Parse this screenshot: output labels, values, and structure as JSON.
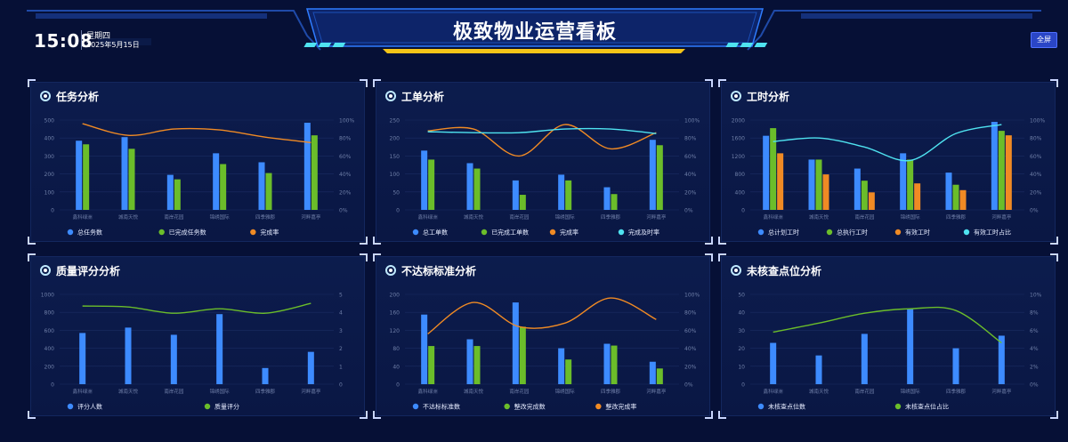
{
  "header": {
    "time": "15:08",
    "weekday": "星期四",
    "date": "2025年5月15日",
    "title": "极致物业运营看板",
    "fullscreen_label": "全屏"
  },
  "colors": {
    "blue": "#3d8bff",
    "green": "#6bbd2a",
    "orange": "#f08a24",
    "cyan": "#4fe3f0",
    "axis_text": "#6f7fa8"
  },
  "panels": [
    {
      "title": "任务分析"
    },
    {
      "title": "工单分析"
    },
    {
      "title": "工时分析"
    },
    {
      "title": "质量评分分析"
    },
    {
      "title": "不达标标准分析"
    },
    {
      "title": "未核查点位分析"
    }
  ],
  "chart_data": [
    {
      "type": "bar",
      "categories": [
        "鑫科绿洲",
        "城南天悦",
        "南岸花园",
        "锦绣国际",
        "四季雅郡",
        "河畔嘉亭"
      ],
      "left_ticks": [
        "0",
        "100",
        "200",
        "300",
        "400",
        "500"
      ],
      "right_ticks": [
        "0%",
        "20%",
        "40%",
        "60%",
        "80%",
        "100%"
      ],
      "ylim": [
        0,
        500
      ],
      "y2lim": [
        0,
        100
      ],
      "series": [
        {
          "name": "总任务数",
          "kind": "bar",
          "color": "#3d8bff",
          "values": [
            385,
            405,
            195,
            315,
            265,
            485
          ]
        },
        {
          "name": "已完成任务数",
          "kind": "bar",
          "color": "#6bbd2a",
          "values": [
            365,
            340,
            170,
            255,
            205,
            415
          ]
        },
        {
          "name": "完成率",
          "kind": "line",
          "axis": "right",
          "color": "#f08a24",
          "values": [
            96,
            83,
            90,
            89,
            81,
            75
          ]
        }
      ]
    },
    {
      "type": "bar",
      "categories": [
        "鑫科绿洲",
        "城南天悦",
        "南岸花园",
        "锦绣国际",
        "四季雅郡",
        "河畔嘉亭"
      ],
      "left_ticks": [
        "0",
        "50",
        "100",
        "150",
        "200",
        "250"
      ],
      "right_ticks": [
        "0%",
        "20%",
        "40%",
        "60%",
        "80%",
        "100%"
      ],
      "ylim": [
        0,
        250
      ],
      "y2lim": [
        0,
        100
      ],
      "series": [
        {
          "name": "总工单数",
          "kind": "bar",
          "color": "#3d8bff",
          "values": [
            165,
            130,
            82,
            98,
            63,
            195
          ]
        },
        {
          "name": "已完成工单数",
          "kind": "bar",
          "color": "#6bbd2a",
          "values": [
            140,
            115,
            42,
            82,
            44,
            180
          ]
        },
        {
          "name": "完成率",
          "kind": "line",
          "axis": "right",
          "color": "#f08a24",
          "values": [
            88,
            90,
            60,
            95,
            68,
            86
          ]
        },
        {
          "name": "完成及时率",
          "kind": "line",
          "axis": "right",
          "color": "#4fe3f0",
          "values": [
            87,
            86,
            86,
            90,
            90,
            85
          ]
        }
      ]
    },
    {
      "type": "bar",
      "categories": [
        "鑫科绿洲",
        "城南天悦",
        "南岸花园",
        "锦绣国际",
        "四季雅郡",
        "河畔嘉亭"
      ],
      "left_ticks": [
        "0",
        "400",
        "800",
        "1200",
        "1600",
        "2000"
      ],
      "right_ticks": [
        "0%",
        "20%",
        "40%",
        "60%",
        "80%",
        "100%"
      ],
      "ylim": [
        0,
        2000
      ],
      "y2lim": [
        0,
        100
      ],
      "series": [
        {
          "name": "总计划工时",
          "kind": "bar",
          "color": "#3d8bff",
          "values": [
            1650,
            1120,
            920,
            1260,
            830,
            1960
          ]
        },
        {
          "name": "总执行工时",
          "kind": "bar",
          "color": "#6bbd2a",
          "values": [
            1820,
            1120,
            650,
            1120,
            560,
            1760
          ]
        },
        {
          "name": "有效工时",
          "kind": "bar",
          "color": "#f08a24",
          "values": [
            1260,
            790,
            390,
            590,
            440,
            1660
          ]
        },
        {
          "name": "有效工时占比",
          "kind": "line",
          "axis": "right",
          "color": "#4fe3f0",
          "values": [
            76,
            80,
            70,
            55,
            85,
            95
          ]
        }
      ]
    },
    {
      "type": "bar",
      "categories": [
        "鑫科绿洲",
        "城南天悦",
        "南岸花园",
        "锦绣国际",
        "四季雅郡",
        "河畔嘉亭"
      ],
      "left_ticks": [
        "0",
        "200",
        "400",
        "600",
        "800",
        "1000"
      ],
      "right_ticks": [
        "0",
        "1",
        "2",
        "3",
        "4",
        "5"
      ],
      "ylim": [
        0,
        1000
      ],
      "y2lim": [
        0,
        5
      ],
      "series": [
        {
          "name": "评分人数",
          "kind": "bar",
          "color": "#3d8bff",
          "values": [
            570,
            630,
            550,
            780,
            180,
            360
          ]
        },
        {
          "name": "质量评分",
          "kind": "line",
          "axis": "right",
          "color": "#6bbd2a",
          "values": [
            4.35,
            4.3,
            3.95,
            4.2,
            3.95,
            4.5
          ]
        }
      ]
    },
    {
      "type": "bar",
      "categories": [
        "鑫科绿洲",
        "城南天悦",
        "南岸花园",
        "锦绣国际",
        "四季雅郡",
        "河畔嘉亭"
      ],
      "left_ticks": [
        "0",
        "40",
        "80",
        "120",
        "160",
        "200"
      ],
      "right_ticks": [
        "0%",
        "20%",
        "40%",
        "60%",
        "80%",
        "100%"
      ],
      "ylim": [
        0,
        200
      ],
      "y2lim": [
        0,
        100
      ],
      "series": [
        {
          "name": "不达标标准数",
          "kind": "bar",
          "color": "#3d8bff",
          "values": [
            155,
            100,
            182,
            80,
            90,
            50
          ]
        },
        {
          "name": "整改完成数",
          "kind": "bar",
          "color": "#6bbd2a",
          "values": [
            85,
            85,
            128,
            55,
            86,
            35
          ]
        },
        {
          "name": "整改完成率",
          "kind": "line",
          "axis": "right",
          "color": "#f08a24",
          "values": [
            56,
            91,
            64,
            68,
            96,
            72
          ]
        }
      ]
    },
    {
      "type": "bar",
      "categories": [
        "鑫科绿洲",
        "城南天悦",
        "南岸花园",
        "锦绣国际",
        "四季雅郡",
        "河畔嘉亭"
      ],
      "left_ticks": [
        "0",
        "10",
        "20",
        "30",
        "40",
        "50"
      ],
      "right_ticks": [
        "0%",
        "2%",
        "4%",
        "6%",
        "8%",
        "10%"
      ],
      "ylim": [
        0,
        50
      ],
      "y2lim": [
        0,
        10
      ],
      "series": [
        {
          "name": "未核查点位数",
          "kind": "bar",
          "color": "#3d8bff",
          "values": [
            23,
            16,
            28,
            42,
            20,
            27
          ]
        },
        {
          "name": "未核查点位占比",
          "kind": "line",
          "axis": "right",
          "color": "#6bbd2a",
          "values": [
            5.8,
            6.8,
            7.9,
            8.4,
            8.2,
            4.6
          ]
        }
      ]
    }
  ]
}
